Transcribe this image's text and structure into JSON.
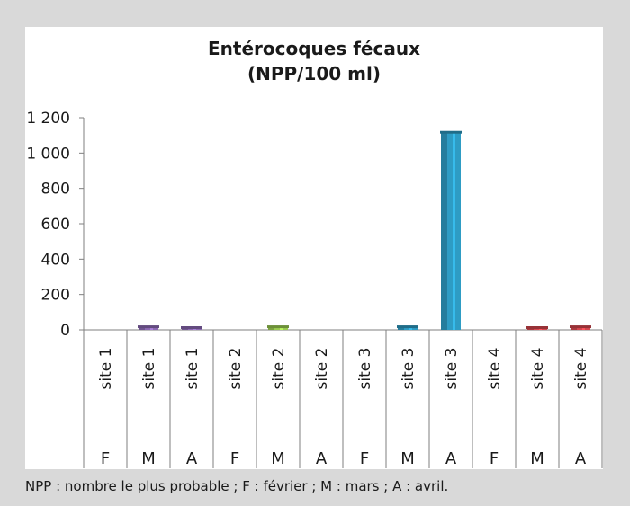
{
  "chart_data": {
    "type": "bar",
    "title_line1": "Entérocoques fécaux",
    "title_line2": "(NPP/100 ml)",
    "ylim": [
      0,
      1200
    ],
    "yticks": [
      0,
      200,
      400,
      600,
      800,
      1000,
      1200
    ],
    "ytick_labels": [
      "0",
      "200",
      "400",
      "600",
      "800",
      "1 000",
      "1 200"
    ],
    "grid": false,
    "categories": [
      {
        "site": "site 1",
        "month": "F",
        "value": 0,
        "color": "#8ccf5a"
      },
      {
        "site": "site 1",
        "month": "M",
        "value": 20,
        "color": "#8e6bb5"
      },
      {
        "site": "site 1",
        "month": "A",
        "value": 15,
        "color": "#8e6bb5"
      },
      {
        "site": "site 2",
        "month": "F",
        "value": 0,
        "color": "#8ccf5a"
      },
      {
        "site": "site 2",
        "month": "M",
        "value": 20,
        "color": "#9ccd52"
      },
      {
        "site": "site 2",
        "month": "A",
        "value": 0,
        "color": "#9ccd52"
      },
      {
        "site": "site 3",
        "month": "F",
        "value": 0,
        "color": "#2e9cc4"
      },
      {
        "site": "site 3",
        "month": "M",
        "value": 20,
        "color": "#2e9cc4"
      },
      {
        "site": "site 3",
        "month": "A",
        "value": 1120,
        "color": "#2e9cc4"
      },
      {
        "site": "site 4",
        "month": "F",
        "value": 0,
        "color": "#d7474f"
      },
      {
        "site": "site 4",
        "month": "M",
        "value": 15,
        "color": "#d7474f"
      },
      {
        "site": "site 4",
        "month": "A",
        "value": 20,
        "color": "#d7474f"
      }
    ]
  },
  "footnote": "NPP : nombre le plus probable ; F : février ; M : mars ; A : avril."
}
